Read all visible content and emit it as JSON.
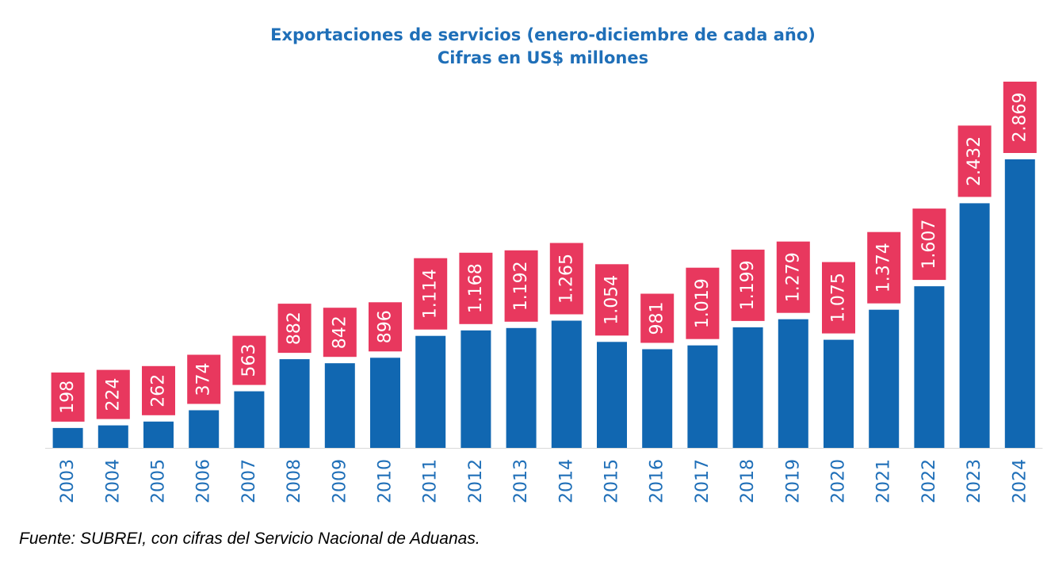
{
  "chart_data": {
    "type": "bar",
    "title": "Exportaciones de servicios (enero-diciembre de cada año)",
    "subtitle": "Cifras en US$ millones",
    "categories": [
      "2003",
      "2004",
      "2005",
      "2006",
      "2007",
      "2008",
      "2009",
      "2010",
      "2011",
      "2012",
      "2013",
      "2014",
      "2015",
      "2016",
      "2017",
      "2018",
      "2019",
      "2020",
      "2021",
      "2022",
      "2023",
      "2024"
    ],
    "values": [
      198,
      224,
      262,
      374,
      563,
      882,
      842,
      896,
      1114,
      1168,
      1192,
      1265,
      1054,
      981,
      1019,
      1199,
      1279,
      1075,
      1374,
      1607,
      2432,
      2869
    ],
    "data_labels": [
      "198",
      "224",
      "262",
      "374",
      "563",
      "882",
      "842",
      "896",
      "1.114",
      "1.168",
      "1.192",
      "1.265",
      "1.054",
      "981",
      "1.019",
      "1.199",
      "1.279",
      "1.075",
      "1.374",
      "1.607",
      "2.432",
      "2.869"
    ],
    "xlabel": "",
    "ylabel": "",
    "ylim": [
      0,
      2869
    ],
    "grid": false,
    "legend": "none",
    "colors": {
      "bar": "#1167b1",
      "label_box": "#e8385e",
      "label_text": "#ffffff",
      "axis_text": "#1f6fb8",
      "title": "#1f6fb8"
    }
  },
  "source": "Fuente: SUBREI, con cifras del Servicio Nacional de Aduanas."
}
